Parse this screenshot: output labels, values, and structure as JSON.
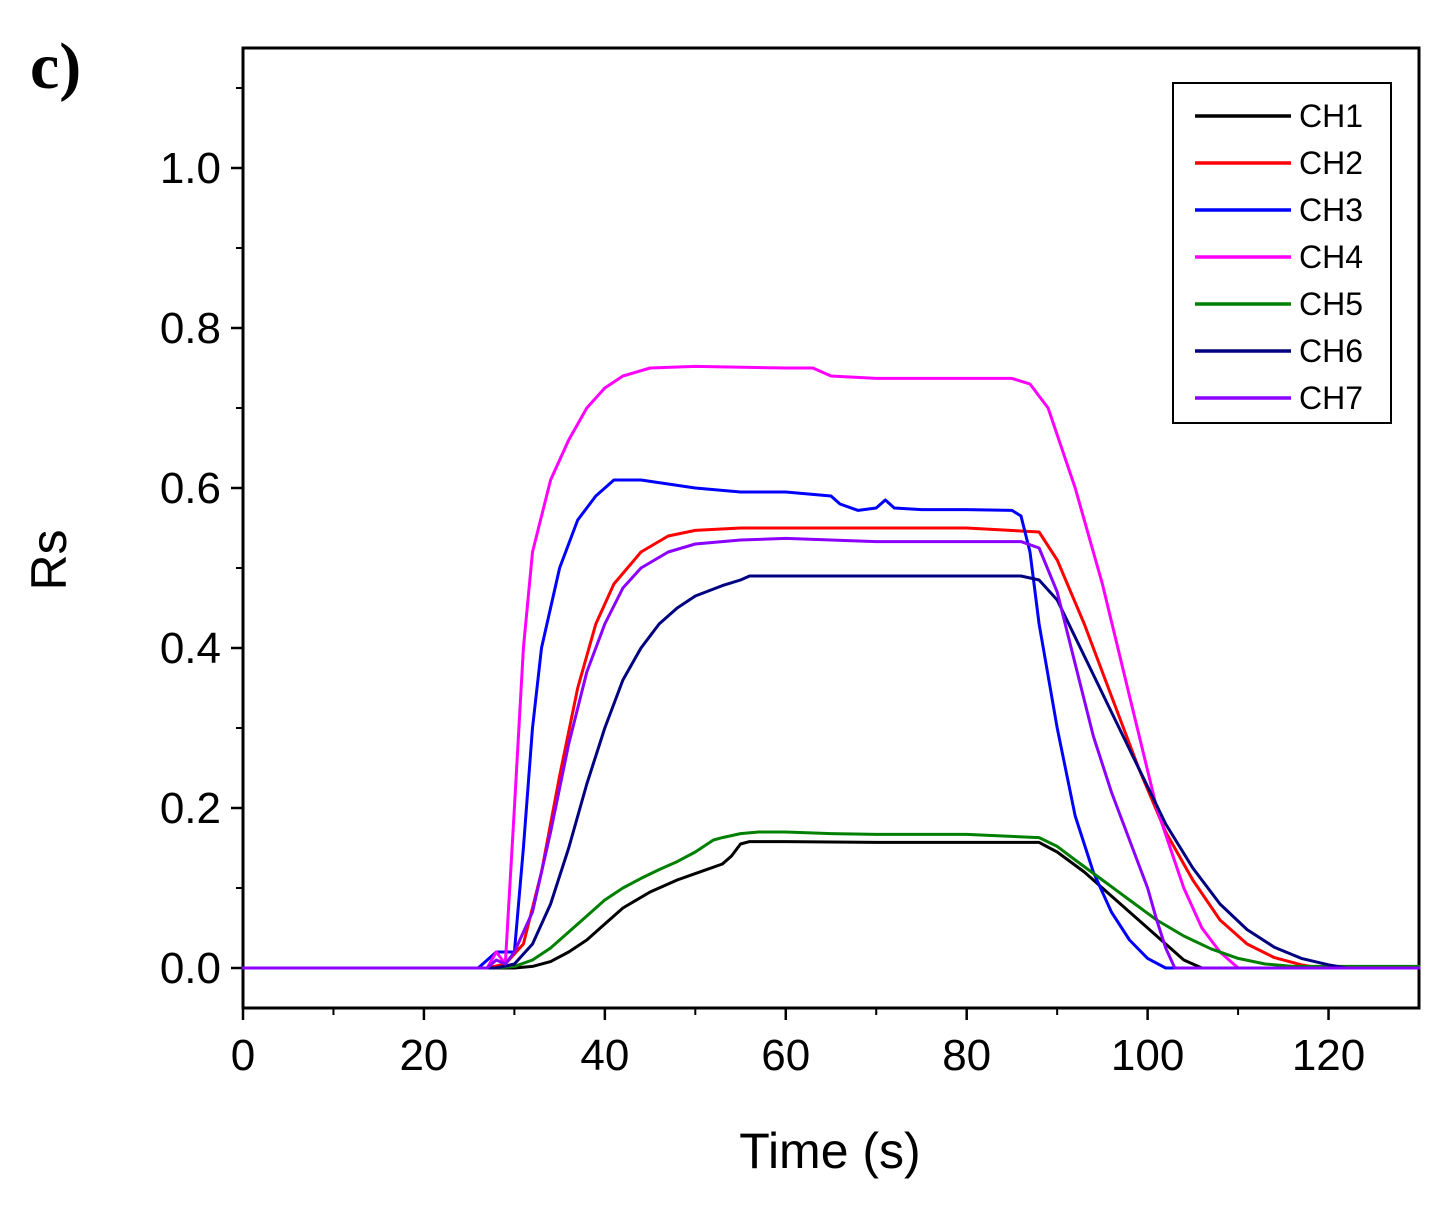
{
  "chart_data": {
    "type": "line",
    "panel_label": "c)",
    "title": "",
    "xlabel": "Time (s)",
    "ylabel": "Rs",
    "xlim": [
      0,
      130
    ],
    "ylim": [
      -0.05,
      1.15
    ],
    "x_ticks": [
      0,
      20,
      40,
      60,
      80,
      100,
      120
    ],
    "x_tick_labels": [
      "0",
      "20",
      "40",
      "60",
      "80",
      "100",
      "120"
    ],
    "y_ticks": [
      0.0,
      0.2,
      0.4,
      0.6,
      0.8,
      1.0
    ],
    "y_tick_labels": [
      "0.0",
      "0.2",
      "0.4",
      "0.6",
      "0.8",
      "1.0"
    ],
    "grid": false,
    "legend_position": "top-right",
    "series": [
      {
        "name": "CH1",
        "color": "#000000",
        "x": [
          0,
          26,
          30,
          32,
          34,
          36,
          38,
          40,
          42,
          45,
          48,
          50,
          53,
          54,
          55,
          56,
          60,
          70,
          80,
          88,
          90,
          93,
          96,
          99,
          102,
          104,
          106,
          130
        ],
        "y": [
          0,
          0,
          0,
          0.002,
          0.008,
          0.02,
          0.035,
          0.055,
          0.075,
          0.095,
          0.11,
          0.118,
          0.13,
          0.14,
          0.155,
          0.158,
          0.158,
          0.157,
          0.157,
          0.157,
          0.145,
          0.12,
          0.09,
          0.06,
          0.03,
          0.01,
          0,
          0
        ]
      },
      {
        "name": "CH2",
        "color": "#ff0000",
        "x": [
          0,
          27,
          29,
          31,
          33,
          35,
          37,
          39,
          41,
          44,
          47,
          50,
          55,
          60,
          70,
          80,
          88,
          90,
          93,
          96,
          99,
          102,
          105,
          108,
          111,
          114,
          117,
          119,
          130
        ],
        "y": [
          0,
          0,
          0.005,
          0.03,
          0.12,
          0.24,
          0.35,
          0.43,
          0.48,
          0.52,
          0.54,
          0.547,
          0.55,
          0.55,
          0.55,
          0.55,
          0.545,
          0.51,
          0.43,
          0.34,
          0.25,
          0.17,
          0.11,
          0.06,
          0.03,
          0.013,
          0.004,
          0,
          0
        ]
      },
      {
        "name": "CH3",
        "color": "#0000ff",
        "x": [
          0,
          26,
          28,
          30,
          31,
          32,
          33,
          35,
          37,
          39,
          41,
          42,
          44,
          50,
          55,
          60,
          65,
          66,
          68,
          70,
          71,
          72,
          75,
          80,
          85,
          86,
          87,
          88,
          90,
          92,
          94,
          96,
          98,
          100,
          102,
          130
        ],
        "y": [
          0,
          0,
          0.02,
          0.02,
          0.15,
          0.3,
          0.4,
          0.5,
          0.56,
          0.59,
          0.61,
          0.61,
          0.61,
          0.6,
          0.595,
          0.595,
          0.59,
          0.58,
          0.572,
          0.575,
          0.585,
          0.575,
          0.573,
          0.573,
          0.572,
          0.565,
          0.52,
          0.43,
          0.3,
          0.19,
          0.12,
          0.07,
          0.035,
          0.012,
          0,
          0
        ]
      },
      {
        "name": "CH4",
        "color": "#ff00ff",
        "x": [
          0,
          27,
          28,
          29,
          30,
          31,
          32,
          34,
          36,
          38,
          40,
          42,
          45,
          50,
          60,
          63,
          65,
          70,
          80,
          85,
          87,
          89,
          92,
          95,
          98,
          101,
          104,
          106,
          108,
          110,
          130
        ],
        "y": [
          0,
          0,
          0.02,
          0.005,
          0.2,
          0.4,
          0.52,
          0.61,
          0.66,
          0.7,
          0.725,
          0.74,
          0.75,
          0.752,
          0.75,
          0.75,
          0.74,
          0.737,
          0.737,
          0.737,
          0.73,
          0.7,
          0.6,
          0.48,
          0.34,
          0.2,
          0.1,
          0.05,
          0.02,
          0,
          0
        ]
      },
      {
        "name": "CH5",
        "color": "#008000",
        "x": [
          0,
          28,
          30,
          32,
          34,
          36,
          38,
          40,
          42,
          44,
          46,
          48,
          50,
          52,
          53,
          55,
          57,
          60,
          65,
          70,
          80,
          88,
          90,
          92,
          95,
          98,
          101,
          104,
          107,
          110,
          113,
          116,
          130
        ],
        "y": [
          0,
          0,
          0.002,
          0.01,
          0.025,
          0.045,
          0.065,
          0.085,
          0.1,
          0.112,
          0.123,
          0.133,
          0.145,
          0.16,
          0.163,
          0.168,
          0.17,
          0.17,
          0.168,
          0.167,
          0.167,
          0.163,
          0.152,
          0.135,
          0.11,
          0.085,
          0.06,
          0.04,
          0.024,
          0.012,
          0.005,
          0.002,
          0.002
        ]
      },
      {
        "name": "CH6",
        "color": "#000080",
        "x": [
          0,
          28,
          30,
          32,
          34,
          36,
          38,
          40,
          42,
          44,
          46,
          48,
          50,
          53,
          55,
          56,
          60,
          70,
          80,
          86,
          88,
          90,
          93,
          96,
          99,
          102,
          105,
          108,
          111,
          114,
          117,
          120,
          122,
          130
        ],
        "y": [
          0,
          0,
          0.005,
          0.03,
          0.08,
          0.15,
          0.23,
          0.3,
          0.36,
          0.4,
          0.43,
          0.45,
          0.465,
          0.478,
          0.485,
          0.49,
          0.49,
          0.49,
          0.49,
          0.49,
          0.485,
          0.46,
          0.39,
          0.32,
          0.25,
          0.18,
          0.125,
          0.08,
          0.048,
          0.026,
          0.012,
          0.004,
          0,
          0
        ]
      },
      {
        "name": "CH7",
        "color": "#8b00ff",
        "x": [
          0,
          27,
          28,
          29,
          30,
          32,
          34,
          36,
          38,
          40,
          42,
          44,
          47,
          50,
          55,
          60,
          65,
          70,
          80,
          86,
          88,
          90,
          92,
          94,
          96,
          98,
          100,
          101,
          102,
          103,
          130
        ],
        "y": [
          0,
          0,
          0.01,
          0.005,
          0.02,
          0.07,
          0.17,
          0.28,
          0.37,
          0.43,
          0.475,
          0.5,
          0.52,
          0.53,
          0.535,
          0.537,
          0.535,
          0.533,
          0.533,
          0.533,
          0.525,
          0.47,
          0.38,
          0.29,
          0.22,
          0.16,
          0.1,
          0.06,
          0.025,
          0,
          0
        ]
      }
    ]
  }
}
